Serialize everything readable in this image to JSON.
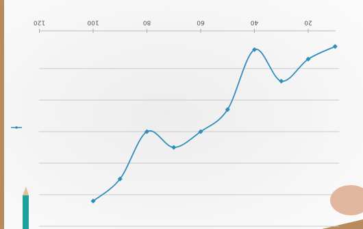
{
  "chart_data": {
    "type": "line",
    "x": [
      10,
      20,
      30,
      40,
      50,
      60,
      70,
      80,
      90,
      100
    ],
    "series": [
      {
        "color": "#2f8dbb",
        "values": [
          0.3,
          0.7,
          1.4,
          0.4,
          2.3,
          3.0,
          3.5,
          3.0,
          4.5,
          5.2
        ]
      }
    ],
    "xlim": [
      0,
      120
    ],
    "xticks": [
      20,
      40,
      60,
      80,
      100,
      120
    ],
    "ylim": [
      0,
      6
    ],
    "yticks": [
      1,
      2,
      3,
      4,
      5,
      6
    ],
    "grid": true
  }
}
